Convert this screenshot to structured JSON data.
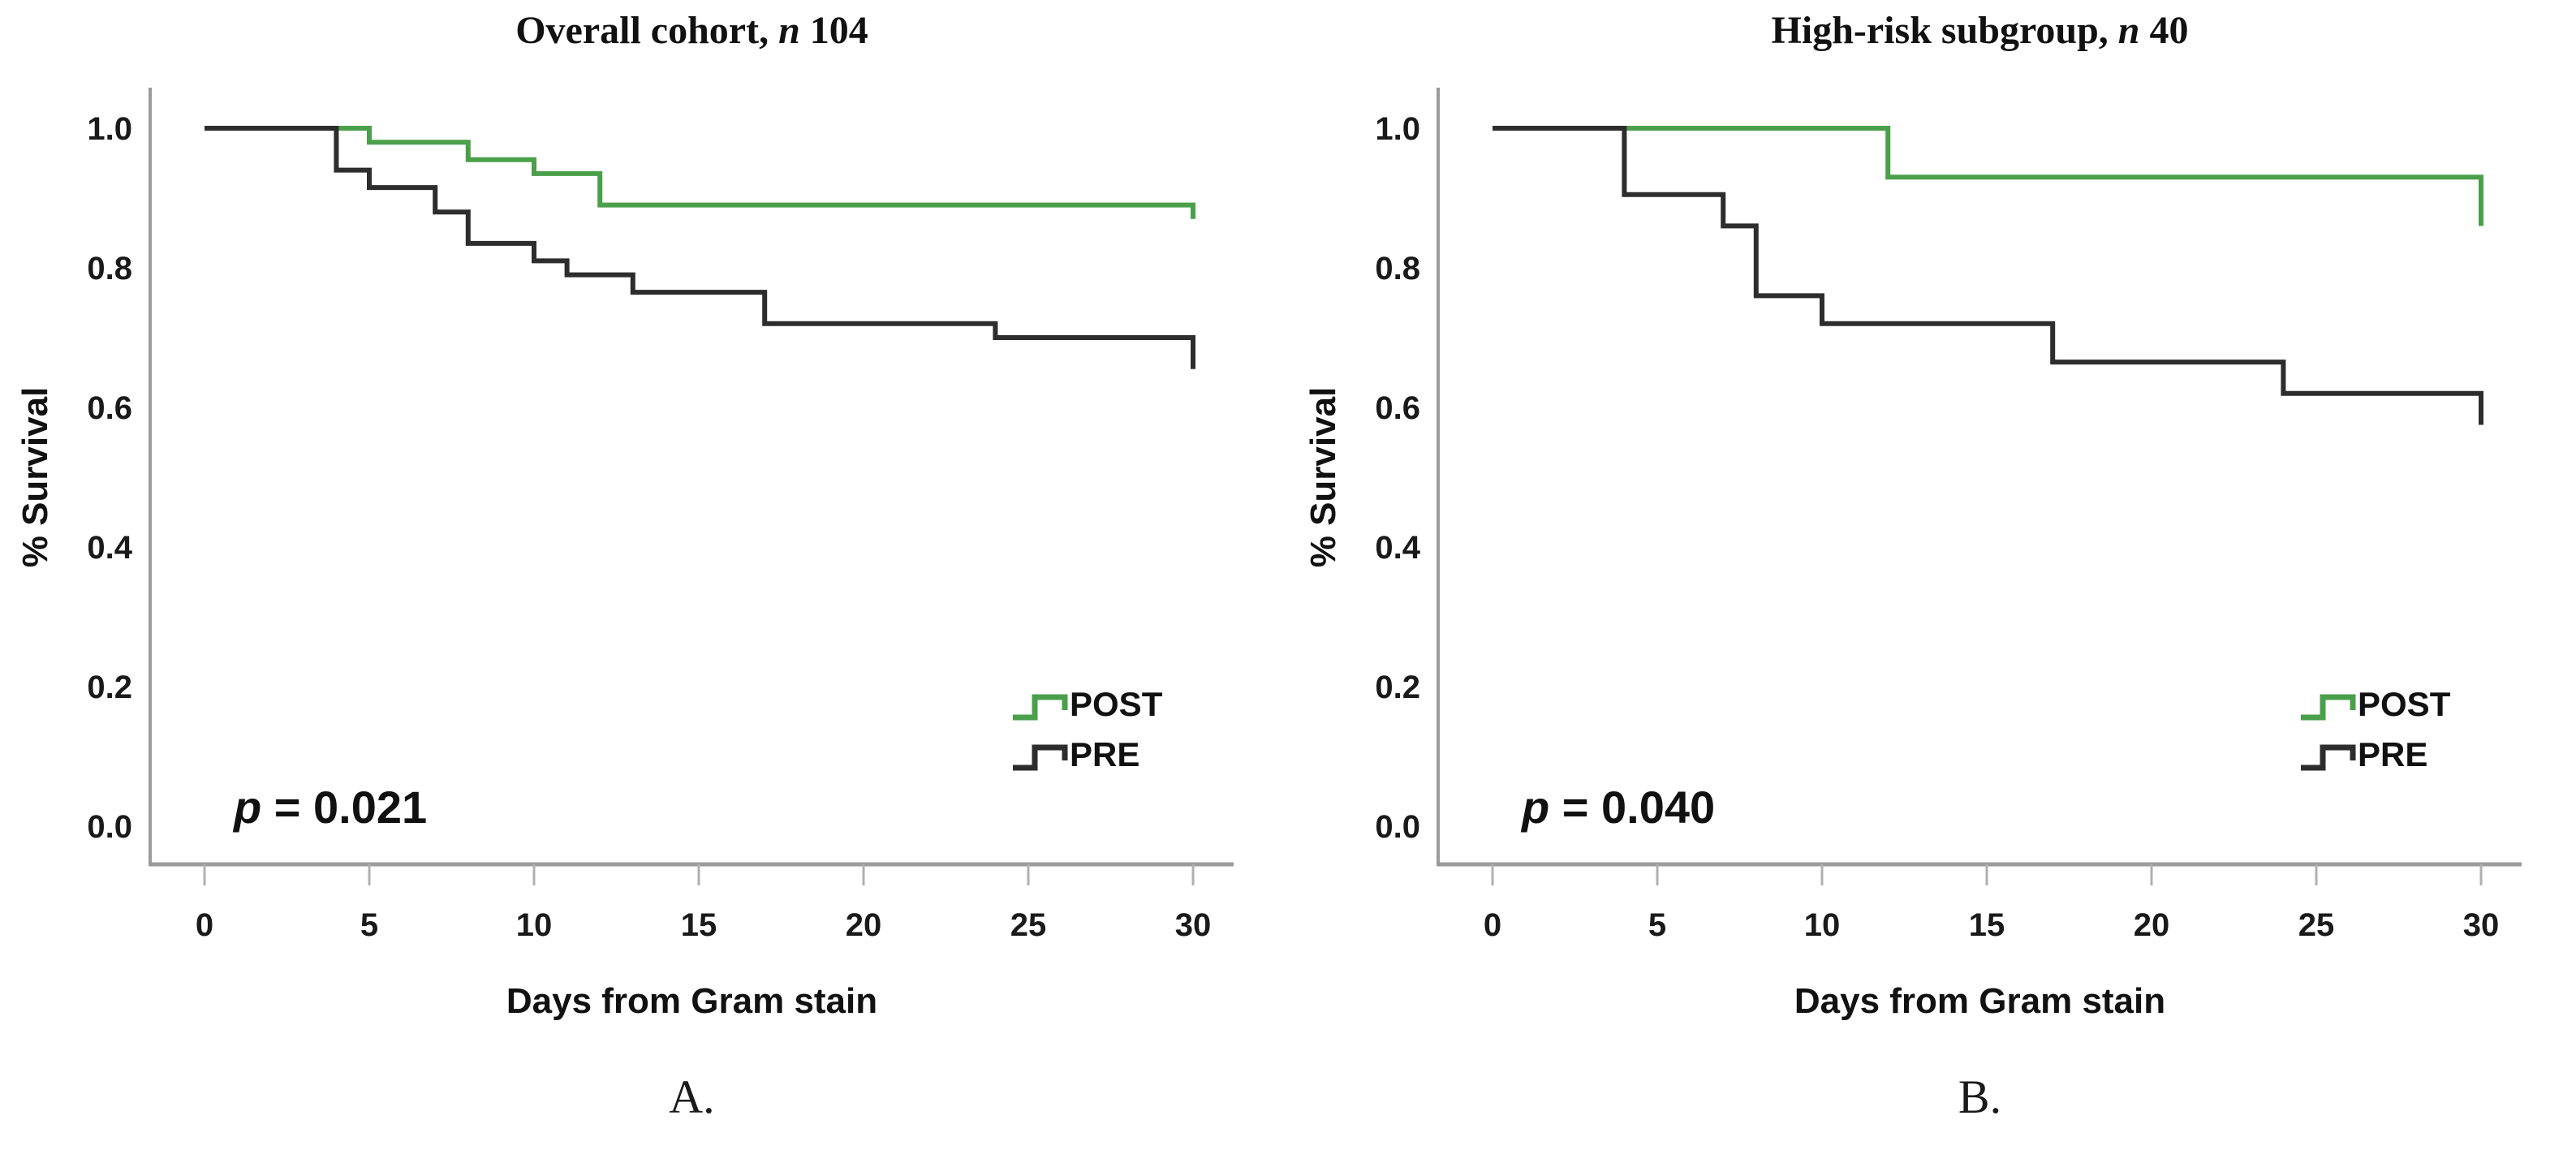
{
  "figure": {
    "background": "#ffffff",
    "captions": {
      "a": "A.",
      "b": "B."
    }
  },
  "chart_data": [
    {
      "id": "A",
      "type": "line",
      "subtype": "kaplan-meier-step",
      "title": {
        "prefix": "Overall cohort, ",
        "n_italic": "n",
        "count": " 104"
      },
      "xlabel": "Days from Gram stain",
      "ylabel": "% Survival",
      "xticks": [
        0,
        5,
        10,
        15,
        20,
        25,
        30
      ],
      "yticks": [
        "1.0",
        "0.8",
        "0.6",
        "0.4",
        "0.2",
        "0.0"
      ],
      "xlim": [
        0,
        30
      ],
      "ylim": [
        0.0,
        1.0
      ],
      "grid": false,
      "p_label": "p",
      "p_text": " = 0.021",
      "legend": {
        "position": "lower-right",
        "entries": [
          {
            "label": "POST",
            "color": "#4aa04a"
          },
          {
            "label": "PRE",
            "color": "#2d2d2d"
          }
        ]
      },
      "series": [
        {
          "name": "POST",
          "color": "#4aa04a",
          "steps": [
            [
              0,
              1.0
            ],
            [
              5,
              0.98
            ],
            [
              8,
              0.955
            ],
            [
              10,
              0.935
            ],
            [
              12,
              0.89
            ],
            [
              30,
              0.87
            ]
          ]
        },
        {
          "name": "PRE",
          "color": "#2d2d2d",
          "steps": [
            [
              0,
              1.0
            ],
            [
              4,
              0.94
            ],
            [
              5,
              0.915
            ],
            [
              7,
              0.88
            ],
            [
              8,
              0.835
            ],
            [
              10,
              0.81
            ],
            [
              11,
              0.79
            ],
            [
              13,
              0.765
            ],
            [
              17,
              0.72
            ],
            [
              24,
              0.7
            ],
            [
              30,
              0.655
            ]
          ]
        }
      ]
    },
    {
      "id": "B",
      "type": "line",
      "subtype": "kaplan-meier-step",
      "title": {
        "prefix": "High-risk subgroup, ",
        "n_italic": "n",
        "count": " 40"
      },
      "xlabel": "Days from Gram stain",
      "ylabel": "% Survival",
      "xticks": [
        0,
        5,
        10,
        15,
        20,
        25,
        30
      ],
      "yticks": [
        "1.0",
        "0.8",
        "0.6",
        "0.4",
        "0.2",
        "0.0"
      ],
      "xlim": [
        0,
        30
      ],
      "ylim": [
        0.0,
        1.0
      ],
      "grid": false,
      "p_label": "p",
      "p_text": " = 0.040",
      "legend": {
        "position": "lower-right",
        "entries": [
          {
            "label": "POST",
            "color": "#4aa04a"
          },
          {
            "label": "PRE",
            "color": "#2d2d2d"
          }
        ]
      },
      "series": [
        {
          "name": "POST",
          "color": "#4aa04a",
          "steps": [
            [
              0,
              1.0
            ],
            [
              12,
              0.93
            ],
            [
              30,
              0.86
            ]
          ]
        },
        {
          "name": "PRE",
          "color": "#2d2d2d",
          "steps": [
            [
              0,
              1.0
            ],
            [
              4,
              0.905
            ],
            [
              7,
              0.86
            ],
            [
              8,
              0.76
            ],
            [
              10,
              0.72
            ],
            [
              17,
              0.665
            ],
            [
              24,
              0.62
            ],
            [
              30,
              0.575
            ]
          ]
        }
      ]
    }
  ]
}
